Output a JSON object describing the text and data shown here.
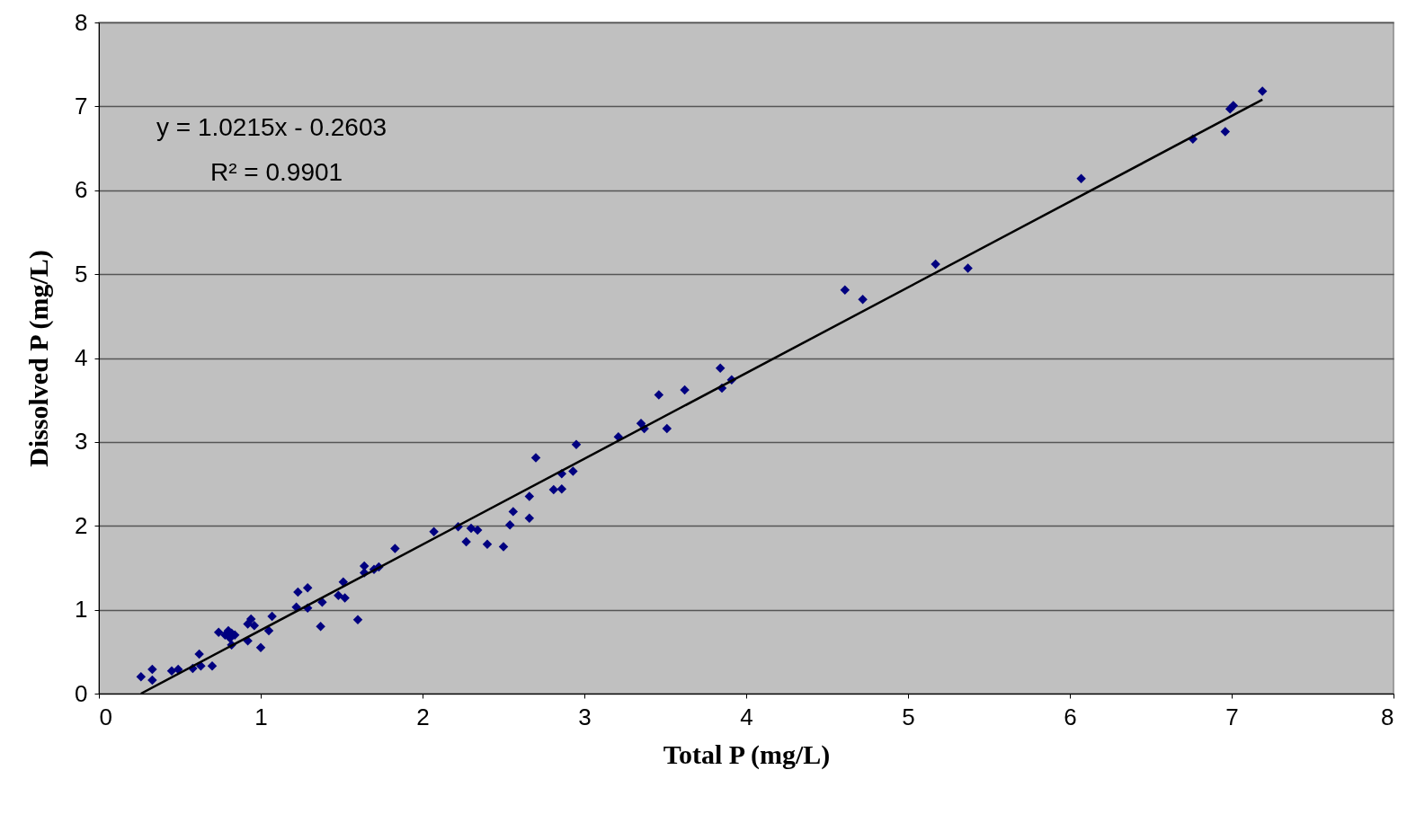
{
  "chart_data": {
    "type": "scatter",
    "xlabel": "Total P (mg/L)",
    "ylabel": "Dissolved P (mg/L)",
    "xlim": [
      0,
      8
    ],
    "xticks": [
      0,
      1,
      2,
      3,
      4,
      5,
      6,
      7,
      8
    ],
    "ylim": [
      0,
      8
    ],
    "yticks": [
      0,
      1,
      2,
      3,
      4,
      5,
      6,
      7,
      8
    ],
    "grid": "y",
    "marker": "diamond",
    "annotations": [
      "y = 1.0215x - 0.2603",
      "R² = 0.9901"
    ],
    "series": [
      {
        "type": "scatter",
        "color": "#000080",
        "x": [
          0.26,
          0.33,
          0.33,
          0.45,
          0.49,
          0.58,
          0.62,
          0.63,
          0.7,
          0.74,
          0.78,
          0.8,
          0.81,
          0.82,
          0.82,
          0.84,
          0.92,
          0.92,
          0.94,
          0.96,
          1.0,
          1.05,
          1.07,
          1.22,
          1.23,
          1.29,
          1.29,
          1.37,
          1.38,
          1.48,
          1.51,
          1.52,
          1.6,
          1.64,
          1.64,
          1.7,
          1.73,
          1.83,
          2.07,
          2.22,
          2.27,
          2.3,
          2.34,
          2.4,
          2.5,
          2.54,
          2.56,
          2.66,
          2.66,
          2.7,
          2.81,
          2.86,
          2.86,
          2.93,
          2.95,
          3.21,
          3.35,
          3.37,
          3.46,
          3.51,
          3.62,
          3.84,
          3.85,
          3.91,
          4.61,
          4.72,
          5.17,
          5.37,
          6.07,
          6.76,
          6.96,
          6.99,
          7.01,
          7.19
        ],
        "values": [
          0.2,
          0.16,
          0.29,
          0.27,
          0.29,
          0.3,
          0.47,
          0.33,
          0.33,
          0.73,
          0.7,
          0.75,
          0.66,
          0.72,
          0.58,
          0.7,
          0.83,
          0.63,
          0.89,
          0.81,
          0.55,
          0.75,
          0.92,
          1.03,
          1.21,
          1.26,
          1.02,
          0.8,
          1.09,
          1.17,
          1.33,
          1.14,
          0.88,
          1.44,
          1.52,
          1.48,
          1.51,
          1.73,
          1.93,
          1.99,
          1.81,
          1.97,
          1.95,
          1.78,
          1.75,
          2.01,
          2.17,
          2.09,
          2.35,
          2.81,
          2.43,
          2.44,
          2.62,
          2.65,
          2.97,
          3.06,
          3.22,
          3.16,
          3.56,
          3.16,
          3.62,
          3.88,
          3.64,
          3.74,
          4.81,
          4.7,
          5.12,
          5.07,
          6.14,
          6.61,
          6.7,
          6.97,
          7.01,
          7.18
        ]
      },
      {
        "type": "line",
        "marker": "none",
        "color": "#000000",
        "x": [
          0.26,
          7.19
        ],
        "values": [
          0.0,
          7.08
        ]
      }
    ]
  }
}
